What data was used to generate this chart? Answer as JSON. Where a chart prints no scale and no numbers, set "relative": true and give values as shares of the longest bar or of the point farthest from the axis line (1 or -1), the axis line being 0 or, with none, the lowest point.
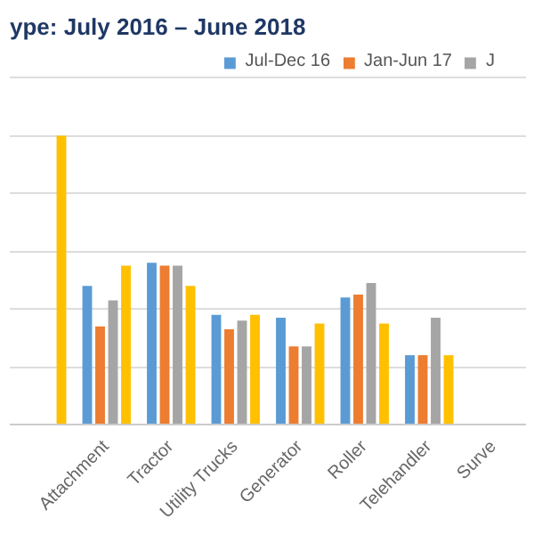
{
  "chart_data": {
    "type": "bar",
    "title": "ype:  July 2016 – June 2018",
    "relative": true,
    "grid": "y",
    "legend": "top right",
    "categories": [
      null,
      "Attachment",
      "Tractor",
      "Utility Trucks",
      "Generator",
      "Roller",
      "Telehandler",
      "Surve"
    ],
    "series": [
      {
        "name": "Jul-Dec 16",
        "color": "#5b9bd5",
        "values": [
          null,
          0.48,
          0.56,
          0.38,
          0.37,
          0.44,
          0.24,
          null
        ]
      },
      {
        "name": "Jan-Jun 17",
        "color": "#ed7d31",
        "values": [
          null,
          0.34,
          0.55,
          0.33,
          0.27,
          0.45,
          0.24,
          null
        ]
      },
      {
        "name": "J",
        "color": "#a5a5a5",
        "values": [
          null,
          0.43,
          0.55,
          0.36,
          0.27,
          0.49,
          0.37,
          null
        ]
      },
      {
        "color": "#ffc000",
        "values": [
          1.0,
          0.55,
          0.48,
          0.38,
          0.35,
          0.35,
          0.24,
          null
        ]
      }
    ]
  }
}
